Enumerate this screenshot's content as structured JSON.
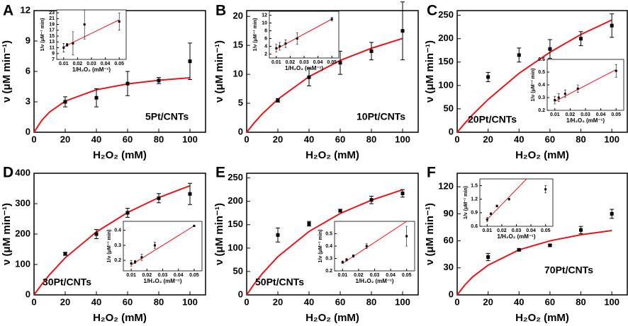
{
  "chart_data": [
    {
      "type": "scatter",
      "label": "A",
      "annotation": "5Pt/CNTs",
      "x_label": "H₂O₂ (mM)",
      "y_label": "ν (μM min⁻¹)",
      "color": "#000000",
      "x": [
        20,
        40,
        60,
        80,
        100
      ],
      "values": [
        3.0,
        3.4,
        4.8,
        5.1,
        7.0
      ],
      "errors": [
        0.5,
        0.9,
        1.2,
        0.3,
        1.8
      ],
      "xlim": [
        0,
        110
      ],
      "xticks": [
        0,
        20,
        40,
        60,
        80,
        100
      ],
      "ylim": [
        0,
        12
      ],
      "yticks": [
        0,
        3,
        6,
        9,
        12
      ],
      "fit": {
        "color": "#e8141c",
        "x": [
          0,
          5,
          10,
          20,
          40,
          60,
          80,
          100
        ],
        "values": [
          0,
          1.18,
          2.0,
          3.07,
          4.19,
          4.77,
          5.13,
          5.37
        ]
      },
      "inset": {
        "type": "scatter",
        "x_label": "1/H₂O₂ (mM⁻¹)",
        "y_label": "1/ν (μM⁻¹ min)",
        "color": "#000000",
        "x": [
          0.01,
          0.0125,
          0.0167,
          0.025,
          0.05
        ],
        "values": [
          11,
          12,
          12.5,
          19,
          20
        ],
        "errors": [
          1.5,
          0.5,
          4,
          5,
          3
        ],
        "xlim": [
          0.005,
          0.055
        ],
        "xticks": [
          0.01,
          0.02,
          0.03,
          0.04,
          0.05
        ],
        "ylim": [
          7,
          24
        ],
        "yticks": [
          7,
          9,
          11,
          13,
          15,
          17,
          19,
          21,
          23
        ],
        "fit": {
          "color": "#e8141c",
          "x": [
            0.01,
            0.05
          ],
          "values": [
            11.3,
            20.6
          ]
        }
      }
    },
    {
      "type": "scatter",
      "label": "B",
      "annotation": "10Pt/CNTs",
      "x_label": "H₂O₂ (mM)",
      "y_label": "ν (μM min⁻¹)",
      "color": "#000000",
      "x": [
        20,
        40,
        60,
        80,
        100
      ],
      "values": [
        5.5,
        9.5,
        12,
        14,
        17.5
      ],
      "errors": [
        0.3,
        1.5,
        2,
        1.5,
        5
      ],
      "xlim": [
        0,
        110
      ],
      "xticks": [
        0,
        20,
        40,
        60,
        80,
        100
      ],
      "ylim": [
        0,
        21
      ],
      "yticks": [
        0,
        5,
        10,
        15,
        20
      ],
      "fit": {
        "color": "#e8141c",
        "x": [
          0,
          5,
          10,
          20,
          40,
          60,
          80,
          100
        ],
        "values": [
          0,
          1.67,
          3.16,
          5.7,
          9.6,
          12.4,
          14.5,
          16.2
        ]
      },
      "inset": {
        "type": "scatter",
        "x_label": "1/H₂O₂ (mM⁻¹)",
        "y_label": "1/ν (μM⁻¹ min)",
        "color": "#000000",
        "x": [
          0.01,
          0.0125,
          0.0167,
          0.025,
          0.05
        ],
        "values": [
          3.5,
          4,
          4.7,
          6,
          11
        ],
        "errors": [
          1,
          1,
          1,
          1.5,
          0.5
        ],
        "xlim": [
          0.005,
          0.055
        ],
        "xticks": [
          0.01,
          0.02,
          0.03,
          0.04,
          0.05
        ],
        "ylim": [
          1,
          13
        ],
        "yticks": [
          2,
          4,
          6,
          8,
          10,
          12
        ],
        "fit": {
          "color": "#e8141c",
          "x": [
            0.01,
            0.05
          ],
          "values": [
            3.3,
            11
          ]
        }
      }
    },
    {
      "type": "scatter",
      "label": "C",
      "annotation": "20Pt/CNTs",
      "x_label": "H₂O₂ (mM)",
      "y_label": "ν (μM min⁻¹)",
      "color": "#000000",
      "x": [
        20,
        40,
        60,
        80,
        100
      ],
      "values": [
        118,
        165,
        178,
        200,
        228
      ],
      "errors": [
        10,
        15,
        20,
        15,
        25
      ],
      "xlim": [
        0,
        110
      ],
      "xticks": [
        0,
        20,
        40,
        60,
        80,
        100
      ],
      "ylim": [
        0,
        260
      ],
      "yticks": [
        0,
        50,
        100,
        150,
        200,
        250
      ],
      "fit": {
        "color": "#e8141c",
        "x": [
          0,
          5,
          10,
          20,
          40,
          60,
          80,
          100
        ],
        "values": [
          0,
          19.4,
          37.5,
          70,
          126,
          171,
          209,
          240
        ]
      },
      "inset": {
        "type": "scatter",
        "x_label": "1/H₂O₂ (mM⁻¹)",
        "y_label": "1/ν (μM⁻¹ min)",
        "color": "#000000",
        "x": [
          0.01,
          0.0125,
          0.0167,
          0.025,
          0.05
        ],
        "values": [
          0.28,
          0.3,
          0.33,
          0.37,
          0.51
        ],
        "errors": [
          0.03,
          0.03,
          0.03,
          0.03,
          0.05
        ],
        "xlim": [
          0.005,
          0.055
        ],
        "xticks": [
          0.01,
          0.02,
          0.03,
          0.04,
          0.05
        ],
        "ylim": [
          0.2,
          0.6
        ],
        "yticks": [
          0.2,
          0.3,
          0.4,
          0.5,
          0.6
        ],
        "fit": {
          "color": "#e8141c",
          "x": [
            0.01,
            0.05
          ],
          "values": [
            0.27,
            0.52
          ]
        }
      }
    },
    {
      "type": "scatter",
      "label": "D",
      "annotation": "30Pt/CNTs",
      "x_label": "H₂O₂ (mM)",
      "y_label": "ν (μM min⁻¹)",
      "color": "#000000",
      "x": [
        20,
        40,
        60,
        80,
        100
      ],
      "values": [
        135,
        200,
        270,
        318,
        332
      ],
      "errors": [
        5,
        15,
        15,
        15,
        35
      ],
      "xlim": [
        0,
        110
      ],
      "xticks": [
        0,
        20,
        40,
        60,
        80,
        100
      ],
      "ylim": [
        0,
        400
      ],
      "yticks": [
        0,
        100,
        200,
        300,
        400
      ],
      "fit": {
        "color": "#e8141c",
        "x": [
          0,
          5,
          10,
          20,
          40,
          60,
          80,
          100
        ],
        "values": [
          0,
          35,
          66.7,
          122,
          207,
          271,
          320,
          359
        ]
      },
      "inset": {
        "type": "scatter",
        "x_label": "1/H₂O₂ (mM⁻¹)",
        "y_label": "1/ν (μM⁻¹ min)",
        "color": "#000000",
        "x": [
          0.01,
          0.0125,
          0.0167,
          0.025,
          0.05
        ],
        "values": [
          0.18,
          0.19,
          0.22,
          0.3,
          0.43
        ],
        "errors": [
          0.02,
          0.01,
          0.02,
          0.02,
          0.005
        ],
        "xlim": [
          0.005,
          0.055
        ],
        "xticks": [
          0.01,
          0.02,
          0.03,
          0.04,
          0.05
        ],
        "ylim": [
          0.13,
          0.46
        ],
        "yticks": [
          0.2,
          0.3,
          0.4
        ],
        "fit": {
          "color": "#e8141c",
          "x": [
            0.01,
            0.05
          ],
          "values": [
            0.17,
            0.43
          ]
        }
      }
    },
    {
      "type": "scatter",
      "label": "E",
      "annotation": "50Pt/CNTs",
      "x_label": "H₂O₂ (mM)",
      "y_label": "ν (μM min⁻¹)",
      "color": "#000000",
      "x": [
        20,
        40,
        60,
        80,
        100
      ],
      "values": [
        128,
        152,
        180,
        203,
        217
      ],
      "errors": [
        15,
        5,
        3,
        8,
        8
      ],
      "xlim": [
        0,
        110
      ],
      "xticks": [
        0,
        20,
        40,
        60,
        80,
        100
      ],
      "ylim": [
        0,
        260
      ],
      "yticks": [
        0,
        50,
        100,
        150,
        200,
        250
      ],
      "fit": {
        "color": "#e8141c",
        "x": [
          0,
          5,
          10,
          20,
          40,
          60,
          80,
          100
        ],
        "values": [
          0,
          24.1,
          45.5,
          81.6,
          135.6,
          174,
          202.5,
          224.7
        ]
      },
      "inset": {
        "type": "scatter",
        "x_label": "1/H₂O₂ (mM⁻¹)",
        "y_label": "1/ν (μM⁻¹ min)",
        "color": "#000000",
        "x": [
          0.01,
          0.0125,
          0.0167,
          0.025,
          0.05
        ],
        "values": [
          0.27,
          0.29,
          0.32,
          0.4,
          0.48
        ],
        "errors": [
          0.01,
          0.01,
          0.01,
          0.02,
          0.08
        ],
        "xlim": [
          0.005,
          0.055
        ],
        "xticks": [
          0.01,
          0.02,
          0.03,
          0.04,
          0.05
        ],
        "ylim": [
          0.2,
          0.6
        ],
        "yticks": [
          0.2,
          0.3,
          0.4,
          0.5
        ],
        "fit": {
          "color": "#e8141c",
          "x": [
            0.01,
            0.05
          ],
          "values": [
            0.26,
            0.6
          ]
        }
      }
    },
    {
      "type": "scatter",
      "label": "F",
      "annotation": "70Pt/CNTs",
      "x_label": "H₂O₂ (mM)",
      "y_label": "ν (μM min⁻¹)",
      "color": "#000000",
      "x": [
        20,
        40,
        60,
        80,
        100
      ],
      "values": [
        42,
        50,
        55,
        72,
        90
      ],
      "errors": [
        4,
        1,
        1,
        4,
        5
      ],
      "xlim": [
        0,
        110
      ],
      "xticks": [
        0,
        20,
        40,
        60,
        80,
        100
      ],
      "ylim": [
        0,
        135
      ],
      "yticks": [
        0,
        30,
        60,
        90,
        120
      ],
      "fit": {
        "color": "#e8141c",
        "x": [
          0,
          5,
          10,
          20,
          40,
          60,
          80,
          100
        ],
        "values": [
          0,
          11.1,
          20,
          33,
          50,
          60,
          66.7,
          71.4
        ]
      },
      "inset": {
        "type": "scatter",
        "x_label": "1/H₂O₂ (mM⁻¹)",
        "y_label": "1/ν (μM⁻¹ min)",
        "color": "#000000",
        "x": [
          0.01,
          0.0125,
          0.0167,
          0.025,
          0.05
        ],
        "values": [
          0.75,
          0.88,
          1.05,
          1.2,
          1.42
        ],
        "errors": [
          0.05,
          0.02,
          0.02,
          0.02,
          0.08
        ],
        "xlim": [
          0.005,
          0.055
        ],
        "xticks": [
          0.01,
          0.02,
          0.03,
          0.04,
          0.05
        ],
        "ylim": [
          0.6,
          1.65
        ],
        "yticks": [
          0.6,
          0.9,
          1.2,
          1.5
        ],
        "fit": {
          "color": "#e8141c",
          "x": [
            0.01,
            0.037
          ],
          "values": [
            0.75,
            1.65
          ]
        }
      }
    }
  ]
}
